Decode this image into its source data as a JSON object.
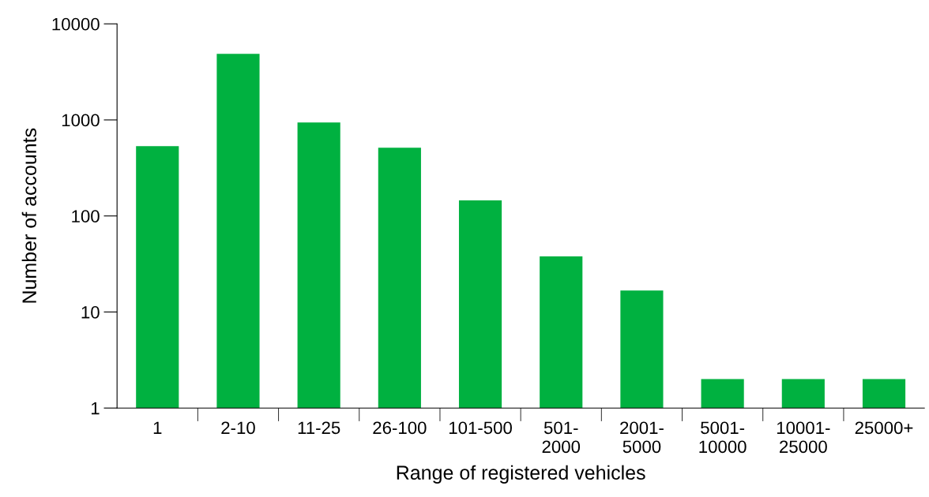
{
  "chart_data": {
    "type": "bar",
    "xlabel": "Range of registered vehicles",
    "ylabel": "Number of accounts",
    "categories": [
      "1",
      "2-10",
      "11-25",
      "26-100",
      "101-500",
      "501-\n2000",
      "2001-\n5000",
      "5001-\n10000",
      "10001-\n25000",
      "25000+"
    ],
    "values": [
      533,
      4875,
      940,
      513,
      145,
      38,
      16.7,
      2,
      2,
      2
    ],
    "color": "#00b140",
    "log": true,
    "ylim": [
      1,
      10000
    ],
    "yticks": [
      1,
      10,
      100,
      1000,
      10000
    ],
    "grid": false,
    "legend": false
  }
}
